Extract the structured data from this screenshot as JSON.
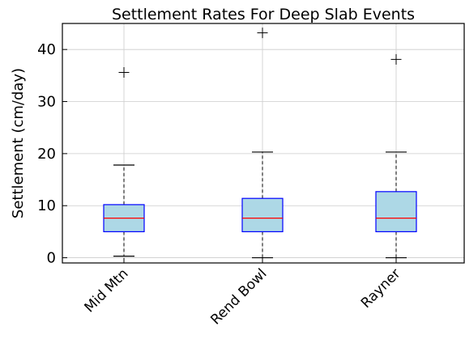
{
  "chart_data": {
    "type": "box",
    "title": "Settlement Rates For Deep Slab Events",
    "xlabel": "",
    "ylabel": "Settlement (cm/day)",
    "ylim": [
      -1,
      45
    ],
    "yticks": [
      0,
      10,
      20,
      30,
      40
    ],
    "grid": true,
    "colors": {
      "box_fill": "#add8e6",
      "box_edge": "#0000ff",
      "median": "#ff0000",
      "whisker": "#000000",
      "grid": "#cccccc"
    },
    "categories": [
      "Mid Mtn",
      "Rend Bowl",
      "Rayner"
    ],
    "boxes": [
      {
        "whisker_low": 0.3,
        "q1": 5.0,
        "median": 7.6,
        "q3": 10.2,
        "whisker_high": 17.8,
        "outliers": [
          35.6
        ]
      },
      {
        "whisker_low": 0.0,
        "q1": 5.0,
        "median": 7.6,
        "q3": 11.4,
        "whisker_high": 20.3,
        "outliers": [
          43.2
        ]
      },
      {
        "whisker_low": 0.0,
        "q1": 5.0,
        "median": 7.6,
        "q3": 12.7,
        "whisker_high": 20.3,
        "outliers": [
          38.1
        ]
      }
    ]
  }
}
